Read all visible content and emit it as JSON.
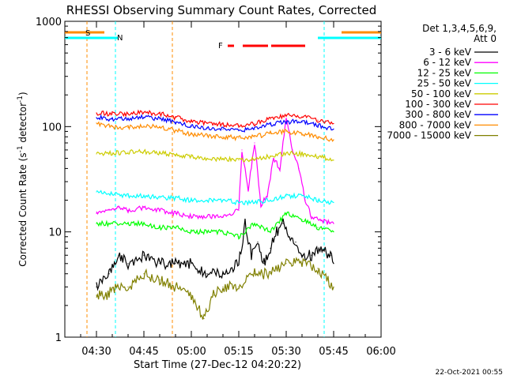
{
  "chart_data": {
    "type": "line",
    "title": "RHESSI Observing Summary Count Rates, Corrected",
    "xlabel": "Start Time (27-Dec-12 04:20:22)",
    "ylabel": "Corrected Count Rate (s",
    "ylabel_sup": "-1",
    "ylabel_end": " detector",
    "ylabel_sup2": "-1",
    "ylabel_close": ")",
    "footer": "22-Oct-2021 00:55",
    "y_scale": "log",
    "ylim": [
      1,
      1000
    ],
    "xlim": [
      "04:20",
      "06:00"
    ],
    "x_ticks": [
      "04:30",
      "04:45",
      "05:00",
      "05:15",
      "05:30",
      "05:45",
      "06:00"
    ],
    "y_ticks": [
      "1",
      "10",
      "100",
      "1000"
    ],
    "legend": {
      "header": [
        "Det 1,3,4,5,6,9,",
        "Att 0"
      ],
      "placement": "top-right outside"
    },
    "series": [
      {
        "name": "3 - 6 keV",
        "color": "#000000",
        "x": [
          "04:30",
          "04:34",
          "04:37",
          "04:40",
          "04:45",
          "04:50",
          "04:55",
          "05:00",
          "05:05",
          "05:10",
          "05:15",
          "05:17",
          "05:19",
          "05:21",
          "05:23",
          "05:25",
          "05:27",
          "05:29",
          "05:31",
          "05:33",
          "05:35",
          "05:38",
          "05:41",
          "05:44",
          "05:45"
        ],
        "values": [
          3,
          4,
          6,
          5,
          6,
          5,
          5,
          5,
          4,
          4,
          5,
          12,
          6,
          8,
          5,
          7,
          10,
          12,
          9,
          8,
          6,
          6,
          7,
          6,
          5
        ]
      },
      {
        "name": "6 - 12 keV",
        "color": "#ff00ff",
        "x": [
          "04:30",
          "04:34",
          "04:37",
          "04:40",
          "04:45",
          "04:50",
          "04:55",
          "05:00",
          "05:05",
          "05:10",
          "05:15",
          "05:16",
          "05:18",
          "05:20",
          "05:22",
          "05:24",
          "05:26",
          "05:28",
          "05:30",
          "05:32",
          "05:34",
          "05:36",
          "05:38",
          "05:41",
          "05:44",
          "05:45"
        ],
        "values": [
          15,
          16,
          17,
          16,
          17,
          16,
          15,
          14,
          14,
          14,
          16,
          60,
          25,
          70,
          18,
          22,
          50,
          40,
          120,
          60,
          40,
          20,
          14,
          13,
          12,
          12
        ]
      },
      {
        "name": "12 - 25 keV",
        "color": "#00ff00",
        "x": [
          "04:30",
          "04:35",
          "04:40",
          "04:45",
          "04:50",
          "04:55",
          "05:00",
          "05:05",
          "05:10",
          "05:15",
          "05:20",
          "05:25",
          "05:30",
          "05:35",
          "05:40",
          "05:45"
        ],
        "values": [
          12,
          12,
          12,
          12,
          11,
          11,
          10,
          10,
          10,
          9,
          12,
          10,
          15,
          13,
          11,
          10
        ]
      },
      {
        "name": "25 - 50 keV",
        "color": "#00ffff",
        "x": [
          "04:30",
          "04:35",
          "04:40",
          "04:45",
          "04:50",
          "04:55",
          "05:00",
          "05:05",
          "05:10",
          "05:15",
          "05:20",
          "05:25",
          "05:30",
          "05:35",
          "05:40",
          "05:45"
        ],
        "values": [
          24,
          23,
          22,
          22,
          21,
          21,
          20,
          20,
          20,
          19,
          19,
          20,
          22,
          22,
          20,
          19
        ]
      },
      {
        "name": "50 - 100 keV",
        "color": "#cccc00",
        "x": [
          "04:30",
          "04:35",
          "04:40",
          "04:45",
          "04:50",
          "04:55",
          "05:00",
          "05:05",
          "05:10",
          "05:15",
          "05:20",
          "05:25",
          "05:30",
          "05:35",
          "05:40",
          "05:45"
        ],
        "values": [
          55,
          56,
          57,
          58,
          56,
          54,
          52,
          50,
          49,
          48,
          49,
          52,
          56,
          55,
          52,
          48
        ]
      },
      {
        "name": "100 - 300 keV",
        "color": "#ff0000",
        "x": [
          "04:30",
          "04:35",
          "04:40",
          "04:45",
          "04:50",
          "04:55",
          "05:00",
          "05:05",
          "05:10",
          "05:15",
          "05:20",
          "05:25",
          "05:30",
          "05:35",
          "05:40",
          "05:45"
        ],
        "values": [
          135,
          132,
          133,
          137,
          133,
          122,
          112,
          107,
          105,
          103,
          106,
          118,
          128,
          124,
          115,
          107
        ]
      },
      {
        "name": "300 - 800 keV",
        "color": "#0000ff",
        "x": [
          "04:30",
          "04:35",
          "04:40",
          "04:45",
          "04:50",
          "04:55",
          "05:00",
          "05:05",
          "05:10",
          "05:15",
          "05:20",
          "05:25",
          "05:30",
          "05:35",
          "05:40",
          "05:45"
        ],
        "values": [
          122,
          118,
          118,
          123,
          118,
          110,
          100,
          96,
          94,
          92,
          94,
          105,
          112,
          110,
          103,
          95
        ]
      },
      {
        "name": "800 - 7000 keV",
        "color": "#ff8c00",
        "x": [
          "04:30",
          "04:35",
          "04:40",
          "04:45",
          "04:50",
          "04:55",
          "05:00",
          "05:05",
          "05:10",
          "05:15",
          "05:20",
          "05:25",
          "05:30",
          "05:35",
          "05:40",
          "05:45"
        ],
        "values": [
          108,
          100,
          98,
          102,
          98,
          92,
          85,
          82,
          80,
          78,
          80,
          86,
          90,
          86,
          80,
          75
        ]
      },
      {
        "name": "7000 - 15000 keV",
        "color": "#808000",
        "x": [
          "04:30",
          "04:33",
          "04:36",
          "04:40",
          "04:45",
          "04:50",
          "04:55",
          "05:00",
          "05:04",
          "05:07",
          "05:10",
          "05:15",
          "05:20",
          "05:25",
          "05:30",
          "05:35",
          "05:40",
          "05:45"
        ],
        "values": [
          2.5,
          2.5,
          3,
          3,
          4,
          3.5,
          3,
          2.5,
          1.5,
          2.5,
          3,
          3,
          4,
          4,
          5,
          5,
          4.5,
          3
        ]
      }
    ],
    "markers": [
      {
        "label": "S",
        "color": "#ff8c00",
        "x": [
          "04:27",
          "04:54"
        ],
        "style": "dashed"
      },
      {
        "label": "N",
        "color": "#00ffff",
        "x": [
          "04:36",
          "05:42"
        ],
        "style": "dashed"
      },
      {
        "label": "F",
        "color": "#ff0000"
      }
    ],
    "grid": false
  }
}
